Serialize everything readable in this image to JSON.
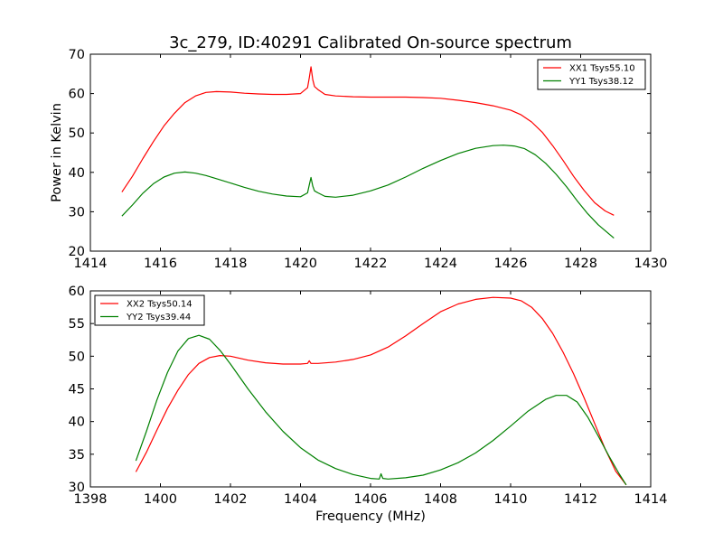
{
  "title": "3c_279, ID:40291 Calibrated On-source spectrum",
  "chart_data": [
    {
      "type": "line",
      "ylabel": "Power in Kelvin",
      "xlabel": "",
      "xlim": [
        1414,
        1430
      ],
      "ylim": [
        20,
        70
      ],
      "xticks": [
        "1414",
        "1416",
        "1418",
        "1420",
        "1422",
        "1424",
        "1426",
        "1428",
        "1430"
      ],
      "yticks": [
        "20",
        "30",
        "40",
        "50",
        "60",
        "70"
      ],
      "legend_position": "top-right",
      "series": [
        {
          "name": "XX1 Tsys55.10",
          "color": "#ff0000",
          "x": [
            1414.9,
            1415.2,
            1415.5,
            1415.8,
            1416.1,
            1416.4,
            1416.7,
            1417.0,
            1417.3,
            1417.6,
            1418.0,
            1418.4,
            1418.8,
            1419.2,
            1419.6,
            1420.0,
            1420.2,
            1420.25,
            1420.3,
            1420.35,
            1420.4,
            1420.5,
            1420.7,
            1421.0,
            1421.5,
            1422.0,
            1422.5,
            1423.0,
            1423.5,
            1424.0,
            1424.5,
            1425.0,
            1425.5,
            1426.0,
            1426.3,
            1426.6,
            1426.9,
            1427.2,
            1427.5,
            1427.8,
            1428.1,
            1428.4,
            1428.7,
            1428.95
          ],
          "values": [
            35.0,
            39.0,
            43.5,
            47.8,
            51.8,
            55.0,
            57.7,
            59.4,
            60.3,
            60.5,
            60.4,
            60.1,
            59.9,
            59.8,
            59.8,
            60.0,
            61.5,
            64.0,
            66.8,
            63.5,
            61.8,
            61.0,
            59.8,
            59.4,
            59.2,
            59.1,
            59.1,
            59.1,
            59.0,
            58.8,
            58.3,
            57.7,
            56.9,
            55.8,
            54.6,
            52.8,
            50.2,
            46.8,
            43.0,
            39.0,
            35.4,
            32.3,
            30.2,
            29.1
          ]
        },
        {
          "name": "YY1 Tsys38.12",
          "color": "#008000",
          "x": [
            1414.9,
            1415.2,
            1415.5,
            1415.8,
            1416.1,
            1416.4,
            1416.7,
            1417.0,
            1417.3,
            1417.6,
            1418.0,
            1418.4,
            1418.8,
            1419.2,
            1419.6,
            1420.0,
            1420.2,
            1420.25,
            1420.3,
            1420.35,
            1420.4,
            1420.5,
            1420.7,
            1421.0,
            1421.5,
            1422.0,
            1422.5,
            1423.0,
            1423.5,
            1424.0,
            1424.5,
            1425.0,
            1425.5,
            1425.8,
            1426.1,
            1426.4,
            1426.7,
            1427.0,
            1427.3,
            1427.6,
            1427.9,
            1428.2,
            1428.5,
            1428.95
          ],
          "values": [
            28.9,
            31.7,
            34.7,
            37.1,
            38.8,
            39.8,
            40.1,
            39.8,
            39.2,
            38.4,
            37.3,
            36.2,
            35.2,
            34.5,
            34.0,
            33.8,
            34.8,
            36.8,
            38.7,
            36.5,
            35.3,
            34.8,
            33.9,
            33.7,
            34.2,
            35.3,
            36.8,
            38.8,
            41.0,
            43.0,
            44.8,
            46.1,
            46.8,
            46.9,
            46.7,
            46.0,
            44.5,
            42.3,
            39.5,
            36.3,
            32.8,
            29.5,
            26.7,
            23.3
          ]
        }
      ]
    },
    {
      "type": "line",
      "ylabel": "",
      "xlabel": "Frequency (MHz)",
      "xlim": [
        1398,
        1414
      ],
      "ylim": [
        30,
        60
      ],
      "xticks": [
        "1398",
        "1400",
        "1402",
        "1404",
        "1406",
        "1408",
        "1410",
        "1412",
        "1414"
      ],
      "yticks": [
        "30",
        "35",
        "40",
        "45",
        "50",
        "55",
        "60"
      ],
      "legend_position": "top-left",
      "series": [
        {
          "name": "XX2 Tsys50.14",
          "color": "#ff0000",
          "x": [
            1399.3,
            1399.6,
            1399.9,
            1400.2,
            1400.5,
            1400.8,
            1401.1,
            1401.4,
            1401.7,
            1402.0,
            1402.5,
            1403.0,
            1403.5,
            1404.0,
            1404.2,
            1404.25,
            1404.3,
            1404.5,
            1405.0,
            1405.5,
            1406.0,
            1406.5,
            1407.0,
            1407.5,
            1408.0,
            1408.5,
            1409.0,
            1409.5,
            1410.0,
            1410.3,
            1410.6,
            1410.9,
            1411.2,
            1411.5,
            1411.8,
            1412.1,
            1412.4,
            1412.7,
            1413.0,
            1413.3
          ],
          "values": [
            32.3,
            35.3,
            38.7,
            42.0,
            44.8,
            47.2,
            48.9,
            49.8,
            50.1,
            50.0,
            49.4,
            49.0,
            48.8,
            48.8,
            48.9,
            49.3,
            48.9,
            48.9,
            49.1,
            49.5,
            50.2,
            51.4,
            53.1,
            55.0,
            56.8,
            58.0,
            58.7,
            59.0,
            58.9,
            58.5,
            57.5,
            55.8,
            53.5,
            50.6,
            47.3,
            43.6,
            39.7,
            35.8,
            32.4,
            30.3
          ]
        },
        {
          "name": "YY2 Tsys39.44",
          "color": "#008000",
          "x": [
            1399.3,
            1399.6,
            1399.9,
            1400.2,
            1400.5,
            1400.8,
            1401.1,
            1401.4,
            1401.7,
            1402.0,
            1402.5,
            1403.0,
            1403.5,
            1404.0,
            1404.5,
            1405.0,
            1405.5,
            1406.0,
            1406.25,
            1406.3,
            1406.35,
            1406.5,
            1407.0,
            1407.5,
            1408.0,
            1408.5,
            1409.0,
            1409.5,
            1410.0,
            1410.5,
            1411.0,
            1411.3,
            1411.6,
            1411.9,
            1412.2,
            1412.5,
            1412.8,
            1413.1,
            1413.3
          ],
          "values": [
            34.0,
            38.5,
            43.3,
            47.5,
            50.8,
            52.7,
            53.2,
            52.6,
            50.9,
            48.8,
            45.0,
            41.5,
            38.5,
            36.0,
            34.1,
            32.8,
            31.9,
            31.3,
            31.2,
            32.0,
            31.3,
            31.2,
            31.4,
            31.8,
            32.6,
            33.7,
            35.2,
            37.1,
            39.3,
            41.6,
            43.4,
            44.0,
            44.0,
            43.0,
            40.7,
            37.8,
            34.8,
            32.0,
            30.3
          ]
        }
      ]
    }
  ]
}
